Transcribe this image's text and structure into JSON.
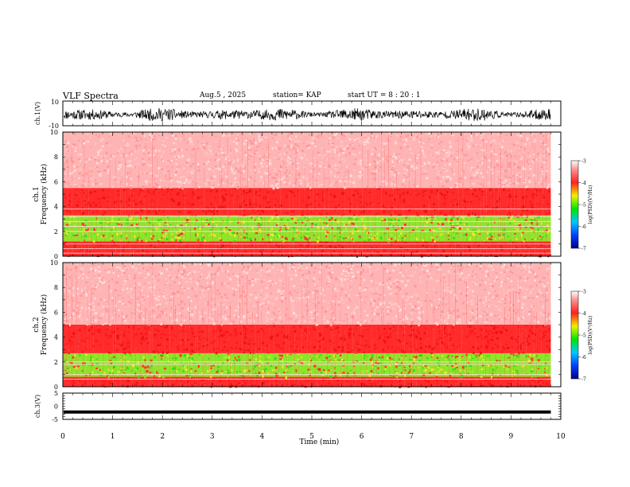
{
  "header": {
    "title": "VLF Spectra",
    "date": "Aug.5  , 2025",
    "station": "station= KAP",
    "start": "start  UT  =   8  : 20 : 1"
  },
  "chart_data": [
    {
      "type": "line",
      "name": "ch1-waveform",
      "ylabel": "ch.1(V)",
      "ylim": [
        -10,
        10
      ],
      "y_ticks": [
        "10",
        "-10"
      ],
      "x_range": [
        0,
        10
      ],
      "data_extent_min": 9.8,
      "amplitude_mean": -1.0,
      "amplitude_span": 5.5
    },
    {
      "type": "heatmap",
      "name": "ch1-spectrogram",
      "ylabel": "ch.1\nFrequency  (kHz)",
      "ylim": [
        0,
        10
      ],
      "y_ticks": [
        "0",
        "2",
        "4",
        "6",
        "8",
        "10"
      ],
      "x_range": [
        0,
        10
      ],
      "data_extent_min": 9.8,
      "colorbar": {
        "label": "log(PSD)(V²/Hz)",
        "ticks": [
          "-3",
          "-4",
          "-5",
          "-6",
          "-7"
        ],
        "range": [
          -7,
          -3
        ]
      },
      "bands_khz": [
        {
          "from": 0.0,
          "to": 1.2,
          "level": "red"
        },
        {
          "from": 1.2,
          "to": 3.3,
          "level": "green-yellow"
        },
        {
          "from": 3.3,
          "to": 5.5,
          "level": "red"
        },
        {
          "from": 5.5,
          "to": 10.0,
          "level": "light-red"
        }
      ],
      "lines_khz": [
        0.25,
        0.6,
        1.0,
        2.0,
        2.4,
        2.8,
        3.2,
        3.8
      ]
    },
    {
      "type": "heatmap",
      "name": "ch2-spectrogram",
      "ylabel": "ch.2\nFrequency  (kHz)",
      "ylim": [
        0,
        10
      ],
      "y_ticks": [
        "0",
        "2",
        "4",
        "6",
        "8",
        "10"
      ],
      "x_range": [
        0,
        10
      ],
      "data_extent_min": 9.8,
      "colorbar": {
        "label": "log(PSD)(V²/Hz)",
        "ticks": [
          "-3",
          "-4",
          "-5",
          "-6",
          "-7"
        ],
        "range": [
          -7,
          -3
        ]
      },
      "bands_khz": [
        {
          "from": 0.0,
          "to": 0.8,
          "level": "red"
        },
        {
          "from": 0.8,
          "to": 2.7,
          "level": "green-yellow"
        },
        {
          "from": 2.7,
          "to": 5.0,
          "level": "red"
        },
        {
          "from": 5.0,
          "to": 10.0,
          "level": "light-red"
        }
      ],
      "lines_khz": [
        0.6,
        1.0,
        1.8,
        2.0
      ]
    },
    {
      "type": "line",
      "name": "ch3-waveform",
      "ylabel": "ch.3(V)",
      "ylim": [
        -5,
        5
      ],
      "y_ticks": [
        "5",
        "0",
        "-5"
      ],
      "x_range": [
        0,
        10
      ],
      "data_extent_min": 9.8,
      "amplitude_mean": -2.2,
      "amplitude_span": 0.6
    }
  ],
  "x_axis": {
    "label": "Time  (min)",
    "ticks": [
      "0",
      "1",
      "2",
      "3",
      "4",
      "5",
      "6",
      "7",
      "8",
      "9",
      "10"
    ]
  }
}
